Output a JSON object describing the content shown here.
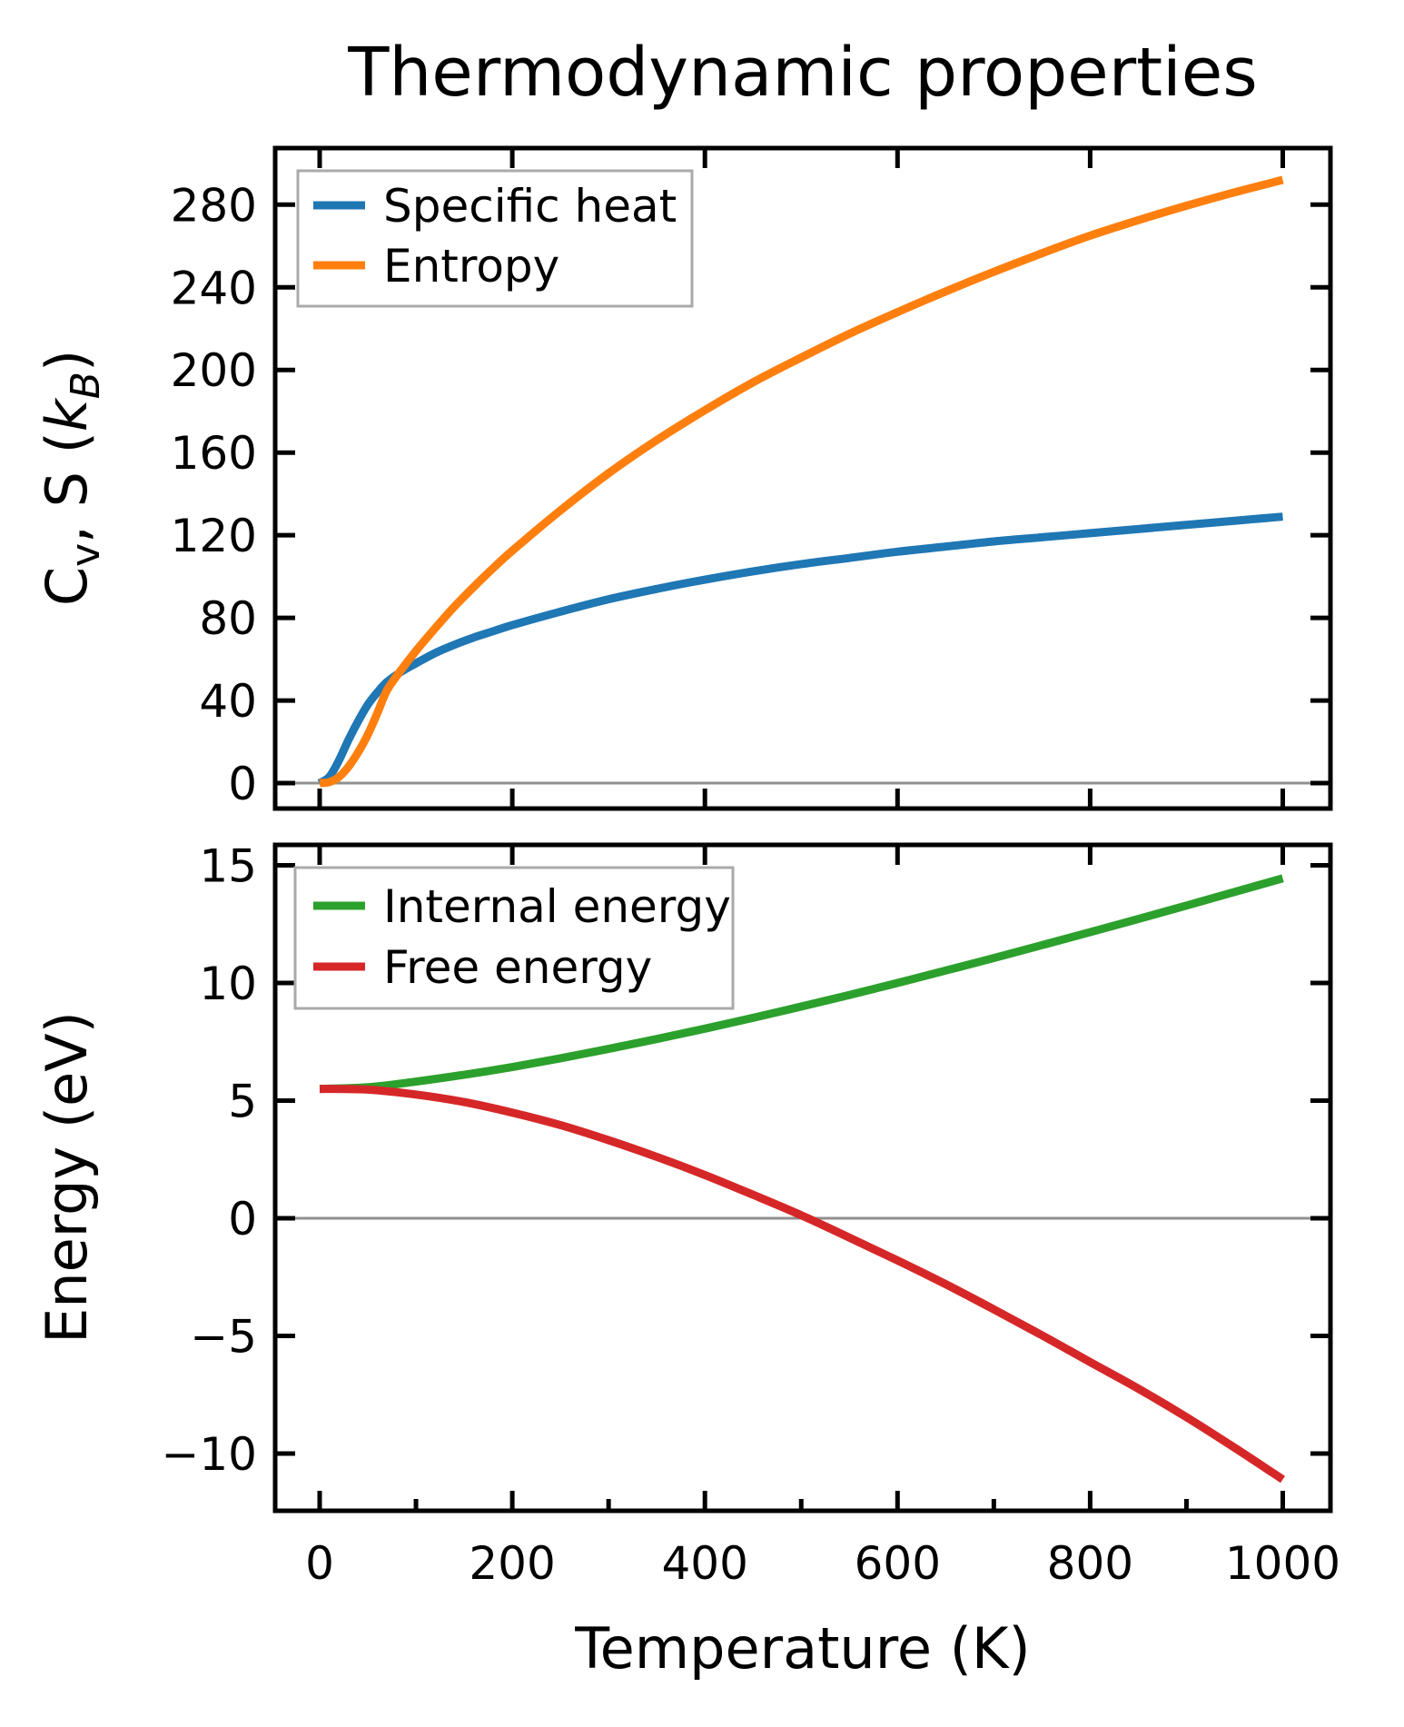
{
  "figure": {
    "title": "Thermodynamic properties",
    "xlabel": "Temperature (K)",
    "background": "#ffffff",
    "axis_color": "#000000",
    "zero_line_color": "#8f8f8f",
    "legend_border_color": "#aaaaaa"
  },
  "chart_data": [
    {
      "type": "line",
      "panel": "top",
      "ylabel": "Cv, S (kB)",
      "ylabel_segments": [
        {
          "t": "C"
        },
        {
          "t": "v",
          "sub": true
        },
        {
          "t": ", S ("
        },
        {
          "t": "k",
          "italic": true
        },
        {
          "t": "B",
          "sub": true,
          "italic": true
        },
        {
          "t": ")"
        }
      ],
      "xlim": [
        -46.2,
        1049.5
      ],
      "ylim": [
        -12.3,
        307.4
      ],
      "xticks": [
        0,
        200,
        400,
        600,
        800,
        1000
      ],
      "xminorticks": [],
      "yticks": [
        0,
        40,
        80,
        120,
        160,
        200,
        240,
        280
      ],
      "show_x_tick_labels": false,
      "zero_line": true,
      "x": [
        0,
        10,
        20,
        30,
        40,
        50,
        60,
        70,
        85,
        100,
        120,
        140,
        160,
        180,
        200,
        250,
        300,
        350,
        400,
        450,
        500,
        550,
        600,
        650,
        700,
        750,
        800,
        850,
        900,
        950,
        1000
      ],
      "series": [
        {
          "name": "Specific heat",
          "color": "#1f77b4",
          "values": [
            0,
            3,
            11,
            21,
            30,
            38,
            44,
            49,
            54,
            58,
            63,
            67,
            70.5,
            73.5,
            76.5,
            83,
            89,
            94,
            98.5,
            102.5,
            106,
            109,
            112,
            114.5,
            117,
            119,
            121,
            123,
            125,
            127,
            129
          ]
        },
        {
          "name": "Entropy",
          "color": "#ff7f0e",
          "values": [
            0,
            0.5,
            3,
            8,
            15,
            23.5,
            34,
            45,
            55,
            64,
            75,
            85.5,
            95,
            104,
            112.5,
            132,
            150,
            166,
            180.5,
            194,
            206,
            217.5,
            228,
            238,
            247.5,
            256.5,
            265,
            272.5,
            279.5,
            286,
            292
          ]
        }
      ],
      "legend": {
        "labels": [
          "Specific heat",
          "Entropy"
        ],
        "position": "upper left"
      }
    },
    {
      "type": "line",
      "panel": "bottom",
      "ylabel": "Energy (eV)",
      "ylabel_segments": [
        {
          "t": "Energy (eV)"
        }
      ],
      "xlim": [
        -46.2,
        1049.5
      ],
      "ylim": [
        -12.43,
        15.87
      ],
      "xticks": [
        0,
        200,
        400,
        600,
        800,
        1000
      ],
      "xminorticks": [
        100,
        300,
        500,
        700,
        900
      ],
      "yticks": [
        -10,
        -5,
        0,
        5,
        10,
        15
      ],
      "show_x_tick_labels": true,
      "zero_line": true,
      "x": [
        0,
        50,
        100,
        150,
        200,
        250,
        300,
        350,
        400,
        450,
        500,
        550,
        600,
        650,
        700,
        750,
        800,
        850,
        900,
        950,
        1000
      ],
      "series": [
        {
          "name": "Internal energy",
          "color": "#2ca02c",
          "values": [
            5.5,
            5.57,
            5.81,
            6.1,
            6.43,
            6.8,
            7.2,
            7.62,
            8.06,
            8.52,
            9.0,
            9.49,
            10.0,
            10.53,
            11.06,
            11.61,
            12.16,
            12.72,
            13.29,
            13.87,
            14.45
          ]
        },
        {
          "name": "Free energy",
          "color": "#d62728",
          "values": [
            5.5,
            5.47,
            5.26,
            4.94,
            4.49,
            3.96,
            3.32,
            2.61,
            1.84,
            1.0,
            0.13,
            -0.82,
            -1.79,
            -2.8,
            -3.87,
            -4.97,
            -6.11,
            -7.24,
            -8.45,
            -9.75,
            -11.1
          ]
        }
      ],
      "legend": {
        "labels": [
          "Internal energy",
          "Free energy"
        ],
        "position": "upper left"
      }
    }
  ]
}
